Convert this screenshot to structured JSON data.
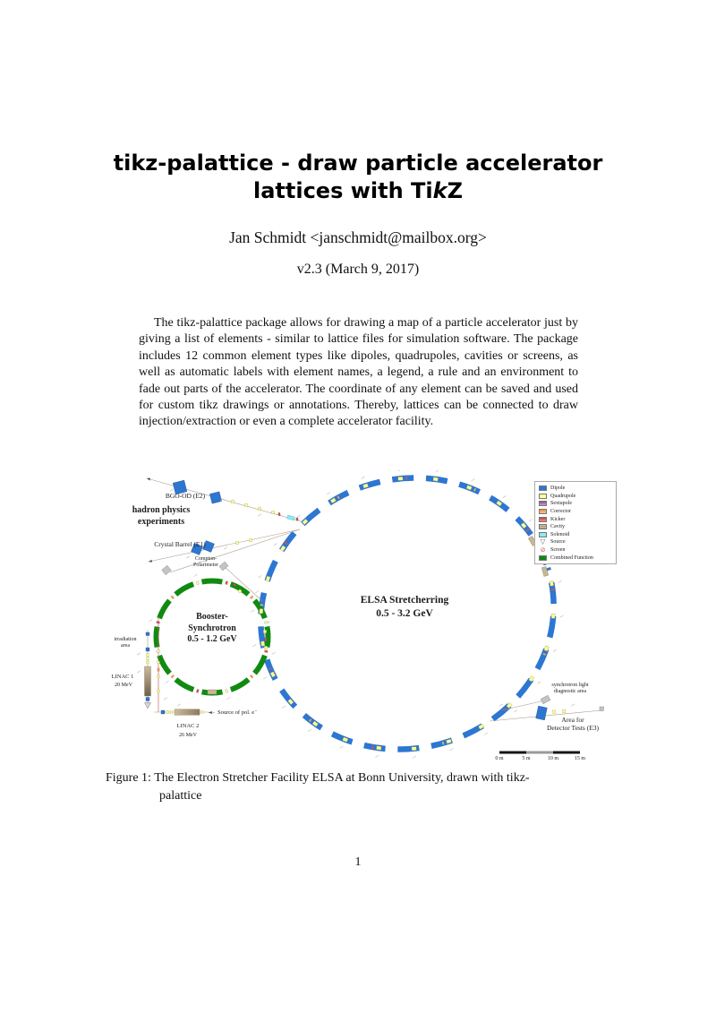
{
  "title": {
    "line1": "tikz-palattice - draw particle accelerator",
    "line2_pre": "lattices with Ti",
    "line2_italic": "k",
    "line2_post": "Z"
  },
  "author": "Jan Schmidt <janschmidt@mailbox.org>",
  "version": "v2.3 (March 9, 2017)",
  "abstract": "The tikz-palattice package allows for drawing a map of a particle accelerator just by giving a list of elements - similar to lattice files for simulation software. The package includes 12 common element types like dipoles, quadrupoles, cavities or screens, as well as automatic labels with element names, a legend, a rule and an environment to fade out parts of the accelerator. The coordinate of any element can be saved and used for custom tikz drawings or annotations. Thereby, lattices can be connected to draw injection/extraction or even a complete accelerator facility.",
  "figure": {
    "labels": {
      "bgo": "BGO-OD (E2)",
      "hadron1": "hadron physics",
      "hadron2": "experiments",
      "crystal": "Crystal Barrel (E1)",
      "compton1": "Compton-",
      "compton2": "Polarimeter",
      "booster1": "Booster-",
      "booster2": "Synchrotron",
      "booster3": "0.5 - 1.2 GeV",
      "elsa1": "ELSA Stretcherring",
      "elsa2": "0.5 - 3.2 GeV",
      "irradiation1": "irradiation",
      "irradiation2": "area",
      "linac1": "LINAC 1",
      "linac1_energy": "20 MeV",
      "linac2": "LINAC 2",
      "linac2_energy": "26 MeV",
      "source": "Source of pol. e⁻",
      "sync1": "synchrotron light",
      "sync2": "diagnostic area",
      "detector1": "Area for",
      "detector2": "Detector Tests (E3)"
    },
    "scale": {
      "t0": "0 m",
      "t5": "5 m",
      "t10": "10 m",
      "t15": "15 m"
    },
    "legend": {
      "items": [
        {
          "label": "Dipole"
        },
        {
          "label": "Quadrupole"
        },
        {
          "label": "Sextupole"
        },
        {
          "label": "Corrector"
        },
        {
          "label": "Kicker"
        },
        {
          "label": "Cavity"
        },
        {
          "label": "Solenoid"
        },
        {
          "label": "Source"
        },
        {
          "label": "Screen"
        },
        {
          "label": "Combined Function"
        }
      ]
    }
  },
  "caption": {
    "line1": "Figure 1: The Electron Stretcher Facility ELSA at Bonn University, drawn with tikz-",
    "line2": "palattice"
  },
  "page": {
    "number": "1"
  },
  "colors": {
    "dipole": "#2d76d2",
    "quadrupole": "#ffff9e",
    "sextupole": "#9a5f9e",
    "corrector": "#f0a360",
    "kicker": "#d65050",
    "cavity": "#c9b795",
    "solenoid": "#86eef2",
    "screen": "#dd8888",
    "combined": "#118a11",
    "beamline": "#a89a8a",
    "transfer": "#c06a60"
  }
}
